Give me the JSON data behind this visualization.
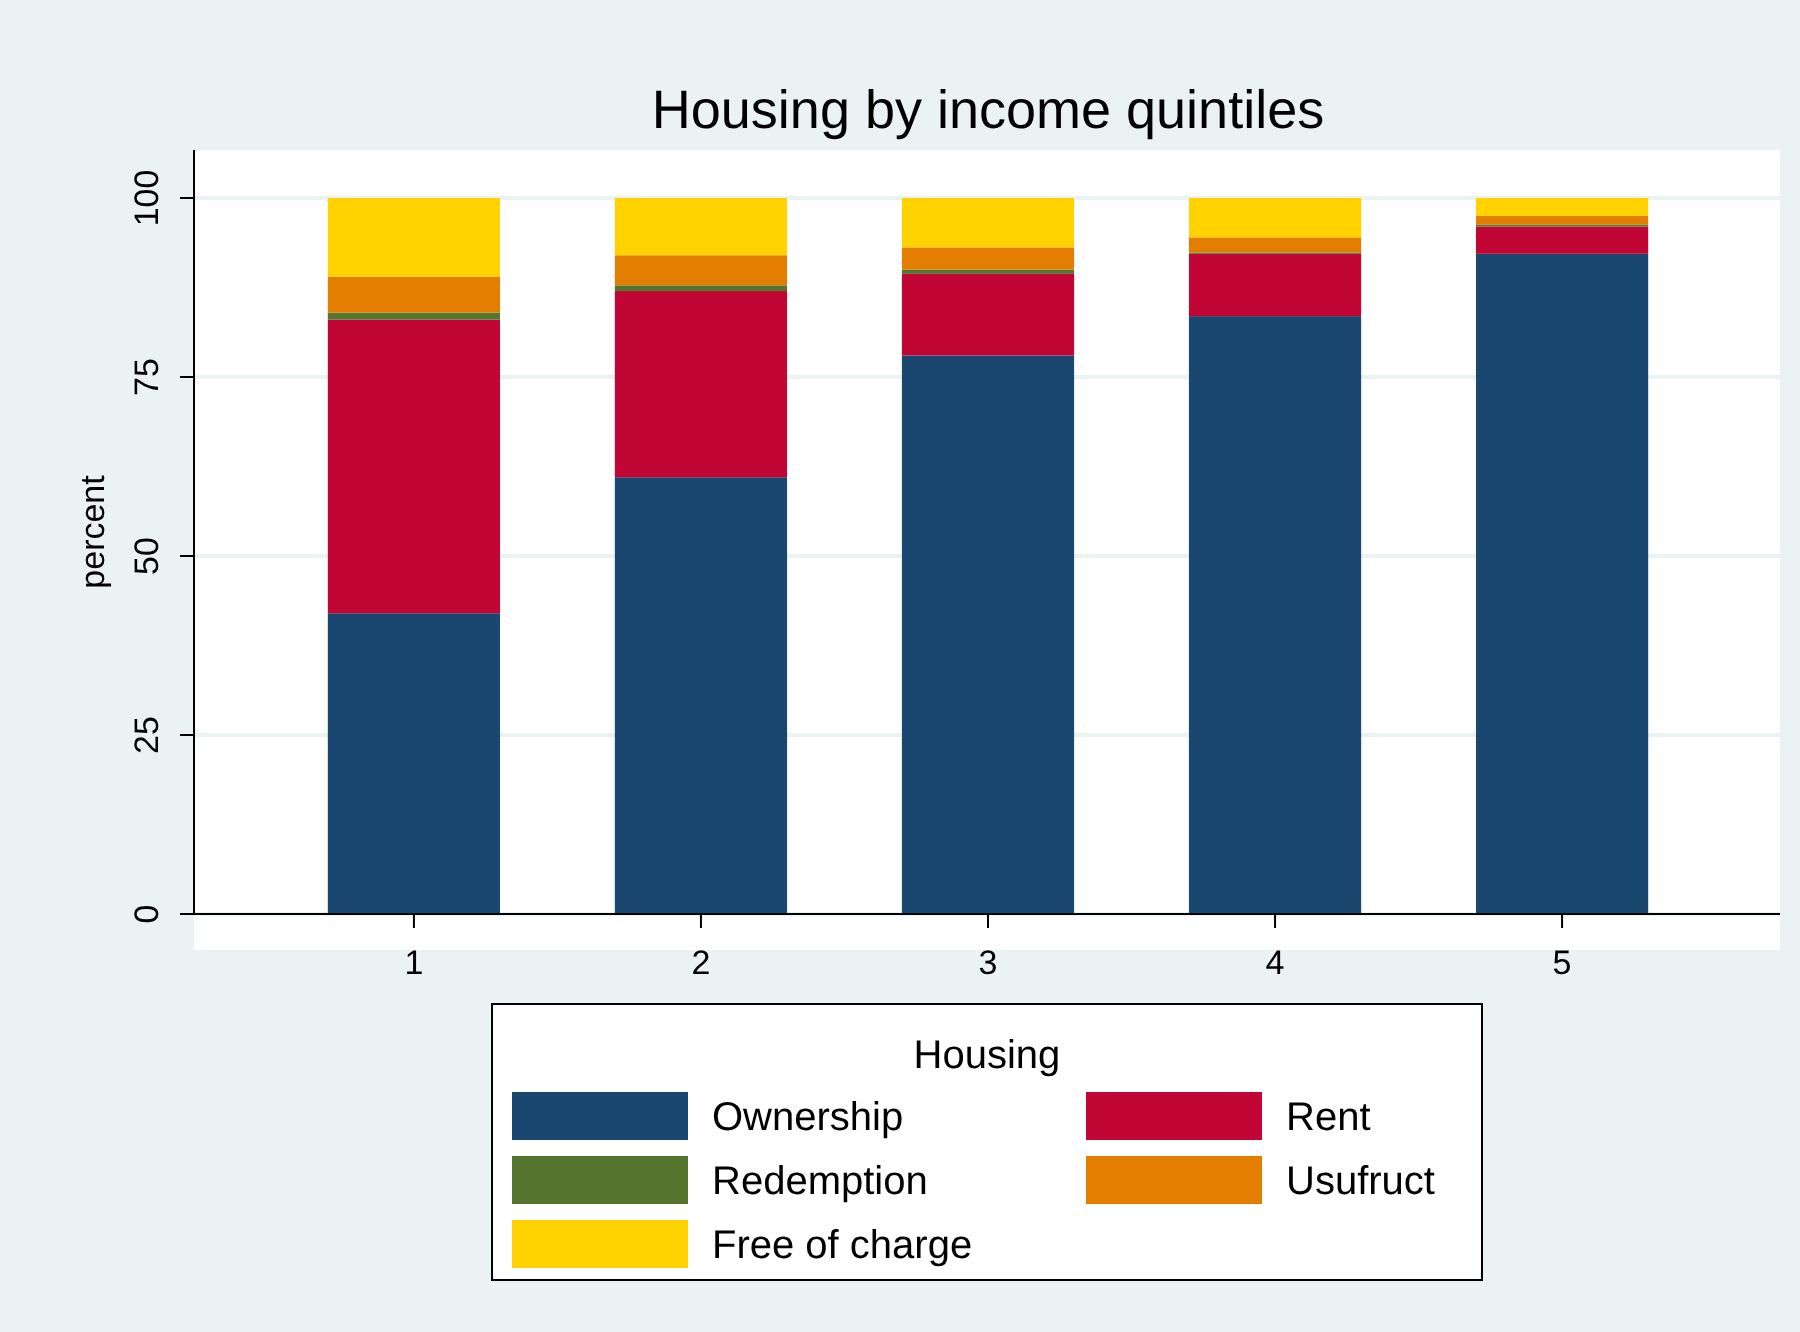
{
  "chart_data": {
    "type": "bar",
    "title": "Housing by income quintiles",
    "ylabel": "percent",
    "legend_title": "Housing",
    "categories": [
      "1",
      "2",
      "3",
      "4",
      "5"
    ],
    "stacked": true,
    "ylim": [
      0,
      106.7
    ],
    "yticks": [
      0,
      25,
      50,
      75,
      100
    ],
    "grid": "y",
    "legend": "bottom",
    "series": [
      {
        "name": "Ownership",
        "color": "#1a476f",
        "values": [
          42,
          61,
          78,
          83.5,
          92.2
        ]
      },
      {
        "name": "Rent",
        "color": "#c10534",
        "values": [
          41,
          26,
          11.4,
          8.7,
          3.8
        ]
      },
      {
        "name": "Redemption",
        "color": "#55752f",
        "values": [
          1,
          0.8,
          0.6,
          0.2,
          0.3
        ]
      },
      {
        "name": "Usufruct",
        "color": "#e37e00",
        "values": [
          5,
          4.2,
          3.1,
          2.1,
          1.2
        ]
      },
      {
        "name": "Free of charge",
        "color": "#ffd200",
        "values": [
          11,
          8,
          6.9,
          5.5,
          2.5
        ]
      }
    ]
  }
}
